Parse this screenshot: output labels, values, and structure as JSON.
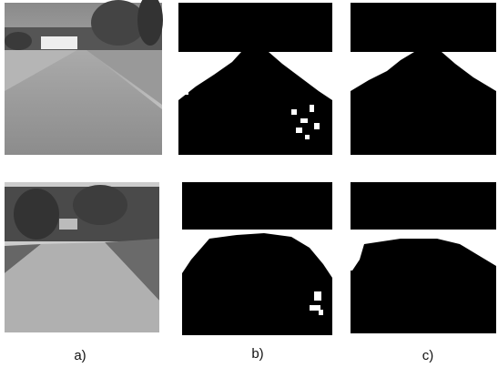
{
  "panel_labels": [
    "a)",
    "b)",
    "c)"
  ]
}
